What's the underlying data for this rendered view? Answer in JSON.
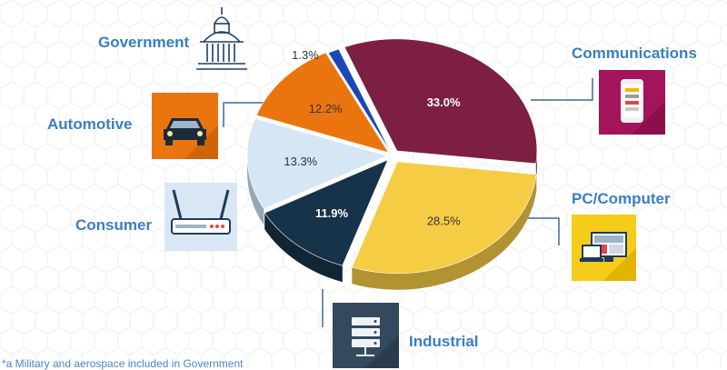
{
  "colors": {
    "label_blue": "#3a7fc1",
    "leader_line": "#3f6a94",
    "communications": "#7c1f42",
    "pc_computer": "#f6cc45",
    "industrial": "#17334a",
    "consumer": "#d5e6f4",
    "automotive": "#ea750f",
    "government": "#1b48b6"
  },
  "chart_data": {
    "type": "pie",
    "title": "",
    "categories": [
      "Communications",
      "PC/Computer",
      "Industrial",
      "Consumer",
      "Automotive",
      "Government"
    ],
    "values": [
      33.0,
      28.5,
      11.9,
      13.3,
      12.2,
      1.3
    ],
    "labels": [
      "33.0%",
      "28.5%",
      "11.9%",
      "13.3%",
      "12.2%",
      "1.3%"
    ],
    "style": "3d-exploded",
    "legend": "none (category labels with icon tiles around the pie)"
  },
  "categories": {
    "government": {
      "label": "Government",
      "icon": "capitol-building-icon"
    },
    "communications": {
      "label": "Communications",
      "icon": "smartphone-icon"
    },
    "automotive": {
      "label": "Automotive",
      "icon": "car-icon"
    },
    "pc_computer": {
      "label": "PC/Computer",
      "icon": "laptop-monitor-icon"
    },
    "consumer": {
      "label": "Consumer",
      "icon": "wifi-router-icon"
    },
    "industrial": {
      "label": "Industrial",
      "icon": "server-rack-icon"
    }
  },
  "footnote": "*a Military and aerospace included in Government"
}
